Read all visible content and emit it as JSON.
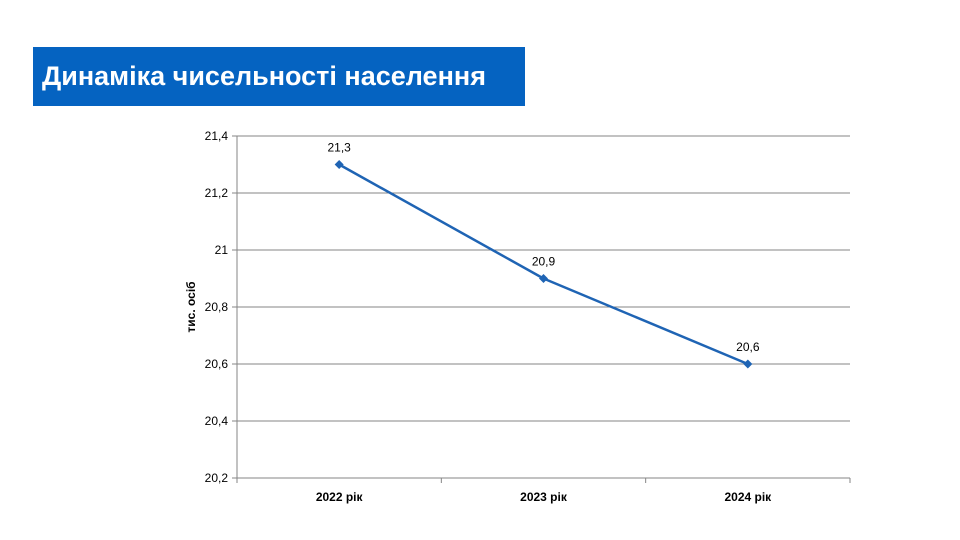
{
  "slide": {
    "title": "Динаміка чисельності населення"
  },
  "colors": {
    "title_bg": "#0563c1",
    "title_text": "#ffffff",
    "series_line": "#1f64b4",
    "gridline": "#868686"
  },
  "chart_data": {
    "type": "line",
    "categories": [
      "2022 рік",
      "2023 рік",
      "2024 рік"
    ],
    "series": [
      {
        "values": [
          21.3,
          20.9,
          20.6
        ],
        "labels": [
          "21,3",
          "20,9",
          "20,6"
        ],
        "marker": "diamond"
      }
    ],
    "ylabel": "тис. осіб",
    "ylim": [
      20.2,
      21.4
    ],
    "yticks": [
      20.2,
      20.4,
      20.6,
      20.8,
      21,
      21.2,
      21.4
    ],
    "ytick_labels": [
      "20,2",
      "20,4",
      "20,6",
      "20,8",
      "21",
      "21,2",
      "21,4"
    ],
    "grid": true,
    "legend": "none"
  }
}
